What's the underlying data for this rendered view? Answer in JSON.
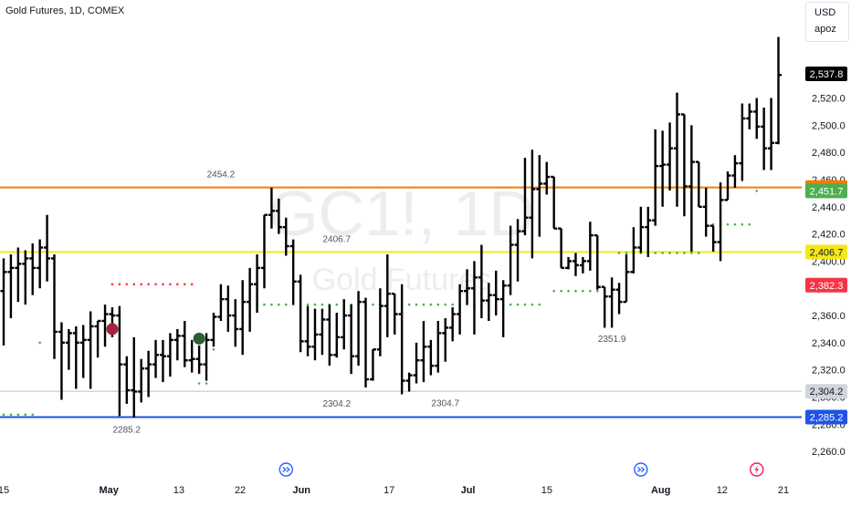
{
  "header": {
    "title": "Gold Futures, 1D, COMEX"
  },
  "watermark": {
    "symbol": "GC1!, 1D",
    "name": "Gold Futures"
  },
  "currency_box": {
    "currency": "USD",
    "user": "apoz"
  },
  "colors": {
    "orange_line": "#f57c00",
    "yellow_line": "#f5e61b",
    "blue_line": "#1e53e5",
    "gray_line": "#d1d4dc",
    "bar": "#000000",
    "dot_red": "#f23645",
    "dot_green": "#4caf50",
    "marker_red": "#a5243d",
    "marker_green": "#2e5e35",
    "event_blue": "#2962ff",
    "event_red": "#e91e63"
  },
  "chart_data": {
    "type": "ohlc",
    "y_ticks": [
      2260,
      2280,
      2300,
      2320,
      2340,
      2360,
      2380,
      2400,
      2420,
      2440,
      2460,
      2480,
      2500,
      2520,
      2540
    ],
    "y_tick_labels": [
      "2,260.0",
      "2,280.0",
      "2,300.0",
      "2,320.0",
      "2,340.0",
      "2,360.0",
      "2,380.0",
      "2,400.0",
      "2,420.0",
      "2,440.0",
      "2,460.0",
      "2,480.0",
      "2,500.0",
      "2,520.0",
      "2,540.0"
    ],
    "ylim": [
      2252,
      2566
    ],
    "x_labels": [
      {
        "label": "15",
        "idx": 0
      },
      {
        "label": "May",
        "idx": 12
      },
      {
        "label": "13",
        "idx": 20
      },
      {
        "label": "22",
        "idx": 27
      },
      {
        "label": "Jun",
        "idx": 34
      },
      {
        "label": "17",
        "idx": 44
      },
      {
        "label": "Jul",
        "idx": 53
      },
      {
        "label": "15",
        "idx": 62
      },
      {
        "label": "Aug",
        "idx": 75
      },
      {
        "label": "12",
        "idx": 82
      },
      {
        "label": "21",
        "idx": 89
      }
    ],
    "bars": [
      [
        2378,
        2402,
        2338,
        2392
      ],
      [
        2392,
        2405,
        2358,
        2395
      ],
      [
        2395,
        2410,
        2370,
        2398
      ],
      [
        2398,
        2408,
        2368,
        2402
      ],
      [
        2402,
        2413,
        2375,
        2395
      ],
      [
        2395,
        2416,
        2380,
        2410
      ],
      [
        2410,
        2434,
        2385,
        2402
      ],
      [
        2402,
        2405,
        2328,
        2348
      ],
      [
        2348,
        2355,
        2298,
        2340
      ],
      [
        2340,
        2350,
        2320,
        2347
      ],
      [
        2347,
        2352,
        2306,
        2340
      ],
      [
        2340,
        2353,
        2314,
        2342
      ],
      [
        2342,
        2363,
        2306,
        2352
      ],
      [
        2352,
        2356,
        2329,
        2356
      ],
      [
        2356,
        2368,
        2337,
        2361
      ],
      [
        2361,
        2366,
        2344,
        2360
      ],
      [
        2360,
        2367,
        2286,
        2324
      ],
      [
        2324,
        2330,
        2295,
        2305
      ],
      [
        2305,
        2344,
        2285,
        2304
      ],
      [
        2304,
        2328,
        2296,
        2321
      ],
      [
        2321,
        2334,
        2300,
        2324
      ],
      [
        2324,
        2342,
        2314,
        2331
      ],
      [
        2331,
        2342,
        2311,
        2330
      ],
      [
        2330,
        2347,
        2315,
        2342
      ],
      [
        2342,
        2350,
        2327,
        2345
      ],
      [
        2345,
        2356,
        2322,
        2327
      ],
      [
        2327,
        2342,
        2318,
        2328
      ],
      [
        2328,
        2338,
        2317,
        2324
      ],
      [
        2324,
        2347,
        2312,
        2342
      ],
      [
        2342,
        2362,
        2337,
        2359
      ],
      [
        2359,
        2383,
        2356,
        2372
      ],
      [
        2372,
        2382,
        2348,
        2360
      ],
      [
        2360,
        2372,
        2337,
        2350
      ],
      [
        2350,
        2386,
        2331,
        2370
      ],
      [
        2370,
        2395,
        2348,
        2383
      ],
      [
        2383,
        2405,
        2362,
        2395
      ],
      [
        2395,
        2423,
        2380,
        2434
      ],
      [
        2434,
        2454,
        2424,
        2437
      ],
      [
        2437,
        2446,
        2420,
        2425
      ],
      [
        2425,
        2432,
        2404,
        2411
      ],
      [
        2411,
        2416,
        2368,
        2385
      ],
      [
        2385,
        2390,
        2333,
        2341
      ],
      [
        2341,
        2367,
        2330,
        2337
      ],
      [
        2337,
        2365,
        2327,
        2346
      ],
      [
        2346,
        2365,
        2331,
        2357
      ],
      [
        2357,
        2368,
        2323,
        2331
      ],
      [
        2331,
        2362,
        2329,
        2344
      ],
      [
        2344,
        2372,
        2335,
        2360
      ],
      [
        2360,
        2368,
        2317,
        2330
      ],
      [
        2330,
        2378,
        2323,
        2370
      ],
      [
        2370,
        2373,
        2307,
        2313
      ],
      [
        2313,
        2313,
        2312,
        2335
      ],
      [
        2335,
        2380,
        2330,
        2367
      ],
      [
        2367,
        2405,
        2344,
        2376
      ],
      [
        2376,
        2376,
        2346,
        2361
      ],
      [
        2361,
        2383,
        2302,
        2312
      ],
      [
        2312,
        2318,
        2304,
        2316
      ],
      [
        2316,
        2340,
        2310,
        2327
      ],
      [
        2327,
        2356,
        2311,
        2337
      ],
      [
        2337,
        2342,
        2316,
        2323
      ],
      [
        2323,
        2356,
        2318,
        2347
      ],
      [
        2347,
        2358,
        2326,
        2351
      ],
      [
        2351,
        2366,
        2341,
        2361
      ],
      [
        2361,
        2383,
        2346,
        2378
      ],
      [
        2378,
        2394,
        2368,
        2380
      ],
      [
        2380,
        2400,
        2346,
        2388
      ],
      [
        2388,
        2412,
        2358,
        2371
      ],
      [
        2371,
        2384,
        2356,
        2375
      ],
      [
        2375,
        2393,
        2360,
        2372
      ],
      [
        2372,
        2386,
        2344,
        2382
      ],
      [
        2382,
        2426,
        2375,
        2412
      ],
      [
        2412,
        2431,
        2385,
        2422
      ],
      [
        2422,
        2476,
        2419,
        2432
      ],
      [
        2432,
        2482,
        2402,
        2453
      ],
      [
        2453,
        2478,
        2418,
        2457
      ],
      [
        2457,
        2473,
        2449,
        2462
      ],
      [
        2462,
        2438,
        2434,
        2424
      ],
      [
        2424,
        2403,
        2398,
        2395
      ],
      [
        2395,
        2403,
        2394,
        2400
      ],
      [
        2400,
        2406,
        2389,
        2397
      ],
      [
        2397,
        2403,
        2391,
        2400
      ],
      [
        2400,
        2429,
        2393,
        2419
      ],
      [
        2419,
        2406,
        2379,
        2381
      ],
      [
        2381,
        2375,
        2351,
        2374
      ],
      [
        2374,
        2388,
        2351,
        2379
      ],
      [
        2379,
        2384,
        2361,
        2370
      ],
      [
        2370,
        2405,
        2390,
        2392
      ],
      [
        2392,
        2425,
        2391,
        2410
      ],
      [
        2410,
        2440,
        2406,
        2425
      ],
      [
        2425,
        2440,
        2403,
        2430
      ],
      [
        2430,
        2497,
        2426,
        2470
      ],
      [
        2470,
        2496,
        2440,
        2471
      ],
      [
        2471,
        2502,
        2452,
        2483
      ],
      [
        2483,
        2524,
        2440,
        2508
      ],
      [
        2508,
        2506,
        2433,
        2455
      ],
      [
        2455,
        2500,
        2407,
        2473
      ],
      [
        2473,
        2455,
        2455,
        2440
      ],
      [
        2440,
        2454,
        2418,
        2426
      ],
      [
        2426,
        2424,
        2407,
        2414
      ],
      [
        2414,
        2458,
        2400,
        2445
      ],
      [
        2445,
        2466,
        2454,
        2463
      ],
      [
        2463,
        2478,
        2454,
        2472
      ],
      [
        2472,
        2516,
        2459,
        2505
      ],
      [
        2505,
        2516,
        2497,
        2510
      ],
      [
        2510,
        2520,
        2490,
        2499
      ],
      [
        2499,
        2513,
        2467,
        2483
      ],
      [
        2483,
        2520,
        2467,
        2487
      ],
      [
        2487,
        2565,
        2486,
        2537
      ]
    ],
    "levels": [
      {
        "name": "resistance",
        "value": 2454.2,
        "label": "2454.2"
      },
      {
        "name": "support-yellow",
        "value": 2406.7,
        "label": "2406.7"
      },
      {
        "name": "support-gray",
        "value": 2304.2,
        "label": "2304.2"
      },
      {
        "name": "support-blue",
        "value": 2285.2,
        "label": "2285.2"
      }
    ],
    "price_tags": [
      {
        "label": "2,537.8",
        "value": 2537.8,
        "bg": "#000000",
        "fg": "#ffffff"
      },
      {
        "label": "2,454.2",
        "value": 2454.2,
        "bg": "#f57c00",
        "fg": "#ffffff"
      },
      {
        "label": "2,451.7",
        "value": 2451.7,
        "bg": "#4caf50",
        "fg": "#ffffff"
      },
      {
        "label": "2,406.7",
        "value": 2406.7,
        "bg": "#f5e61b",
        "fg": "#131722"
      },
      {
        "label": "2,382.3",
        "value": 2382.3,
        "bg": "#f23645",
        "fg": "#ffffff"
      },
      {
        "label": "2,304.2",
        "value": 2304.2,
        "bg": "#d1d4dc",
        "fg": "#131722"
      },
      {
        "label": "2,285.2",
        "value": 2285.2,
        "bg": "#1e53e5",
        "fg": "#ffffff"
      }
    ],
    "annotations": [
      {
        "label": "2454.2",
        "value": 2454.2,
        "idx": 30,
        "pos": "above"
      },
      {
        "label": "2406.7",
        "value": 2406.7,
        "idx": 46,
        "pos": "above"
      },
      {
        "label": "2285.2",
        "value": 2285.2,
        "idx": 17,
        "pos": "below"
      },
      {
        "label": "2304.2",
        "value": 2304.2,
        "idx": 46,
        "pos": "below"
      },
      {
        "label": "2304.7",
        "value": 2304.7,
        "idx": 61,
        "pos": "below"
      },
      {
        "label": "2351.9",
        "value": 2351.9,
        "idx": 84,
        "pos": "below"
      }
    ],
    "dot_series": [
      {
        "color": "red",
        "value": 2383,
        "from": 15,
        "to": 26
      },
      {
        "color": "green",
        "value": 2287,
        "from": 0,
        "to": 4
      },
      {
        "color": "green",
        "value": 2340,
        "from": 5,
        "to": 5
      },
      {
        "color": "green",
        "value": 2310,
        "from": 27,
        "to": 28
      },
      {
        "color": "green",
        "value": 2335,
        "from": 29,
        "to": 29
      },
      {
        "color": "green",
        "value": 2368,
        "from": 31,
        "to": 74
      },
      {
        "color": "green",
        "value": 2378,
        "from": 76,
        "to": 82
      },
      {
        "color": "green",
        "value": 2406,
        "from": 85,
        "to": 96
      },
      {
        "color": "green",
        "value": 2427,
        "from": 98,
        "to": 103
      },
      {
        "color": "green",
        "value": 2451.7,
        "from": 104,
        "to": 104
      }
    ],
    "markers": [
      {
        "color": "red",
        "value": 2350,
        "idx": 15
      },
      {
        "color": "green",
        "value": 2343,
        "idx": 27
      }
    ],
    "events": [
      {
        "type": "blue",
        "idx": 39
      },
      {
        "type": "blue",
        "idx": 88
      },
      {
        "type": "red",
        "idx": 104
      }
    ]
  }
}
